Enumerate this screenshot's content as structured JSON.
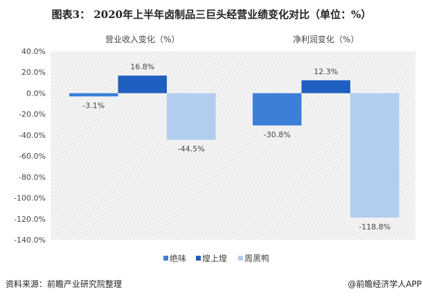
{
  "title": "图表3： 2020年上半年卤制品三巨头经营业绩变化对比（单位：%）",
  "source": "资料来源：前瞻产业研究院整理",
  "credit": "@前瞻经济学人APP",
  "chart_data": {
    "type": "bar",
    "categories": [
      "营业收入变化（%）",
      "净利润变化（%）"
    ],
    "series": [
      {
        "name": "绝味",
        "color": "#3c7fd8",
        "values": [
          -3.1,
          -30.8
        ],
        "labels": [
          "-3.1%",
          "-30.8%"
        ]
      },
      {
        "name": "煌上煌",
        "color": "#1f5fbf",
        "values": [
          16.8,
          12.3
        ],
        "labels": [
          "16.8%",
          "12.3%"
        ]
      },
      {
        "name": "周黑鸭",
        "color": "#b1cdf0",
        "values": [
          -44.5,
          -118.8
        ],
        "labels": [
          "-44.5%",
          "-118.8%"
        ]
      }
    ],
    "ylim": [
      -140,
      40
    ],
    "yticks": [
      "40.0%",
      "20.0%",
      "0.0%",
      "-20.0%",
      "-40.0%",
      "-60.0%",
      "-80.0%",
      "-100.0%",
      "-120.0%",
      "-140.0%"
    ],
    "ytick_values": [
      40,
      20,
      0,
      -20,
      -40,
      -60,
      -80,
      -100,
      -120,
      -140
    ],
    "legend": "bottom",
    "grid": false
  }
}
